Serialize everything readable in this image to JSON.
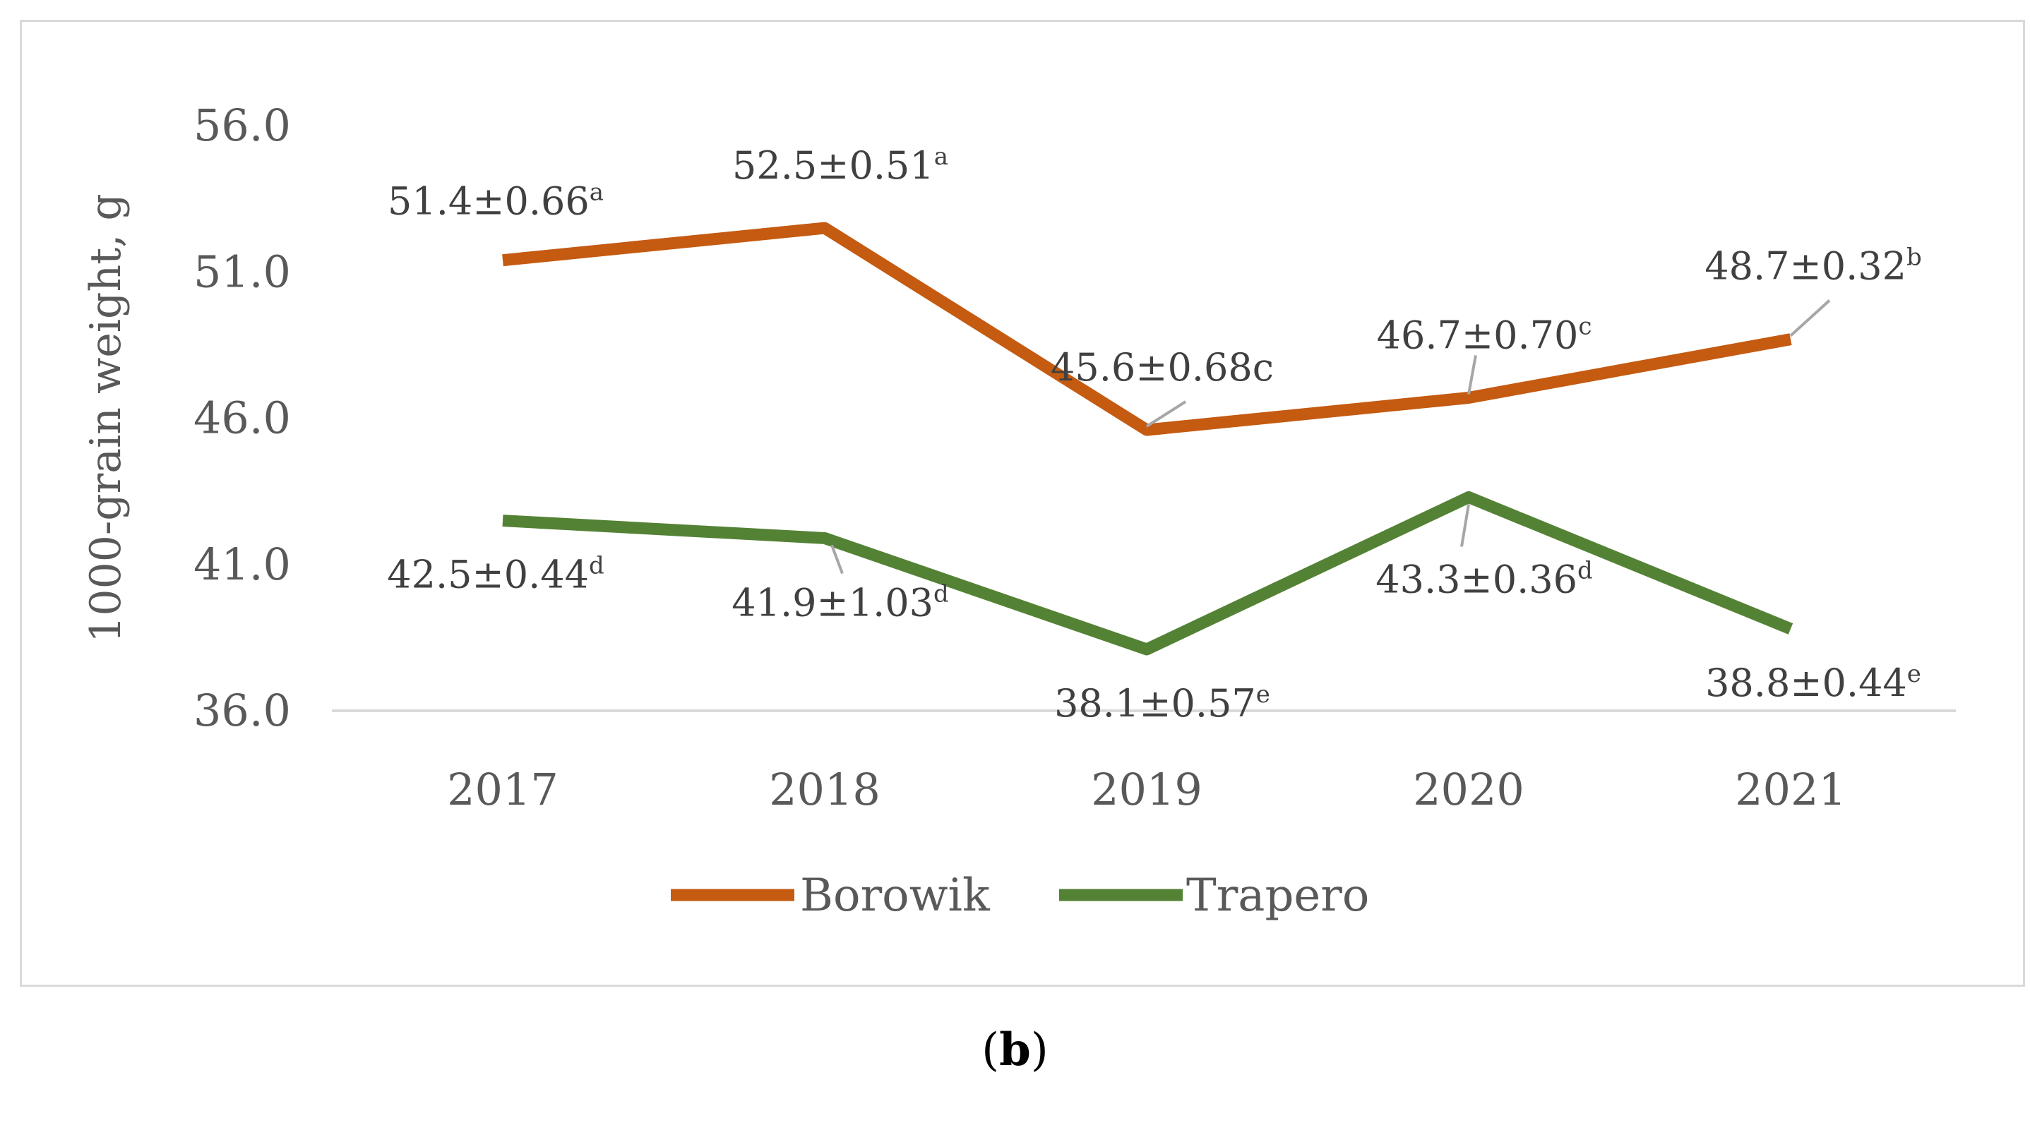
{
  "caption": {
    "open": "(",
    "letter": "b",
    "close": ")"
  },
  "chart_data": {
    "type": "line",
    "title": "",
    "xlabel": "",
    "ylabel": "1000-grain weight, g",
    "categories": [
      "2017",
      "2018",
      "2019",
      "2020",
      "2021"
    ],
    "ylim": [
      36.0,
      56.0
    ],
    "yticks": [
      "56.0",
      "51.0",
      "46.0",
      "41.0",
      "36.0"
    ],
    "ytick_values": [
      56.0,
      51.0,
      46.0,
      41.0,
      36.0
    ],
    "grid": false,
    "legend_position": "bottom",
    "series": [
      {
        "name": "Borowik",
        "color": "#c55a11",
        "values": [
          51.4,
          52.5,
          45.6,
          46.7,
          48.7
        ],
        "labels": [
          {
            "main": "51.4±0.66",
            "sup": "a"
          },
          {
            "main": "52.5±0.51",
            "sup": "a"
          },
          {
            "main": "45.6±0.68c",
            "sup": ""
          },
          {
            "main": "46.7±0.70",
            "sup": "c"
          },
          {
            "main": "48.7±0.32",
            "sup": "b"
          }
        ]
      },
      {
        "name": "Trapero",
        "color": "#548235",
        "values": [
          42.5,
          41.9,
          38.1,
          43.3,
          38.8
        ],
        "labels": [
          {
            "main": "42.5±0.44",
            "sup": "d"
          },
          {
            "main": "41.9±1.03",
            "sup": "d"
          },
          {
            "main": "38.1±0.57",
            "sup": "e"
          },
          {
            "main": "43.3±0.36",
            "sup": "d"
          },
          {
            "main": "38.8±0.44",
            "sup": "e"
          }
        ]
      }
    ]
  }
}
